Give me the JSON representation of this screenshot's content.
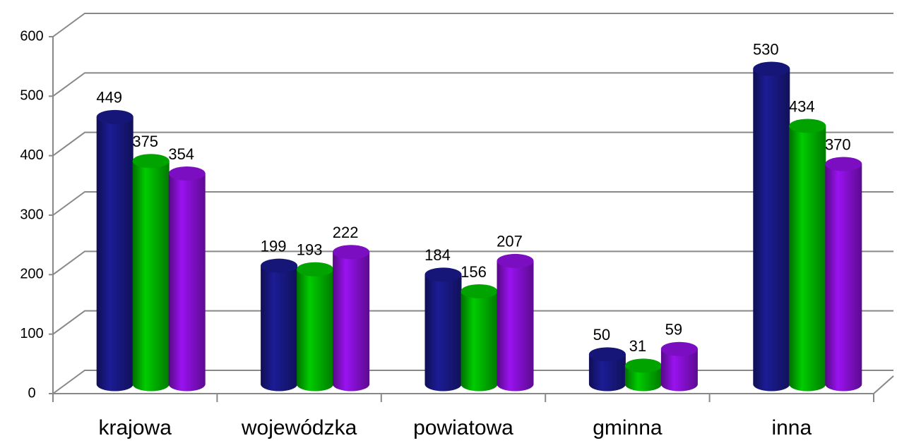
{
  "chart_data": {
    "type": "bar3d",
    "categories": [
      "krajowa",
      "wojewódzka",
      "powiatowa",
      "gminna",
      "inna"
    ],
    "series": [
      {
        "color": "#1c1c96",
        "values": [
          449,
          199,
          184,
          50,
          530
        ]
      },
      {
        "color": "#00cc00",
        "values": [
          375,
          193,
          156,
          31,
          434
        ]
      },
      {
        "color": "#9a12f0",
        "values": [
          354,
          222,
          207,
          59,
          370
        ]
      }
    ],
    "ylim": [
      0,
      600
    ],
    "yticks": [
      0,
      100,
      200,
      300,
      400,
      500,
      600
    ],
    "grid": true
  }
}
